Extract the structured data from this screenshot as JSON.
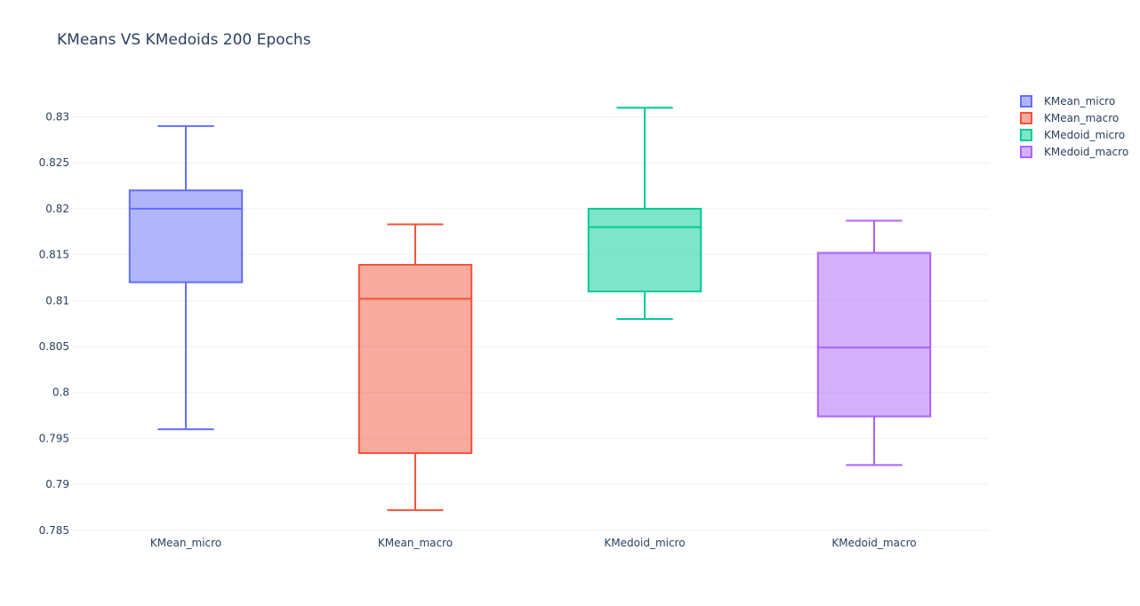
{
  "chart_data": {
    "type": "box",
    "title": "KMeans VS KMedoids 200 Epochs",
    "xlabel": "",
    "ylabel": "",
    "categories": [
      "KMean_micro",
      "KMean_macro",
      "KMedoid_micro",
      "KMedoid_macro"
    ],
    "ylim": [
      0.7845,
      0.8345
    ],
    "yticks": [
      0.785,
      0.79,
      0.795,
      0.8,
      0.805,
      0.81,
      0.815,
      0.82,
      0.825,
      0.83
    ],
    "ytick_labels": [
      "0.785",
      "0.79",
      "0.795",
      "0.8",
      "0.805",
      "0.81",
      "0.815",
      "0.82",
      "0.825",
      "0.83"
    ],
    "grid": true,
    "legend_position": "top-right",
    "series": [
      {
        "name": "KMean_micro",
        "min": 0.796,
        "q1": 0.812,
        "median": 0.82,
        "q3": 0.822,
        "max": 0.829,
        "color": "#636efa"
      },
      {
        "name": "KMean_macro",
        "min": 0.7872,
        "q1": 0.7934,
        "median": 0.8102,
        "q3": 0.8139,
        "max": 0.8183,
        "color": "#ef553b"
      },
      {
        "name": "KMedoid_micro",
        "min": 0.808,
        "q1": 0.811,
        "median": 0.818,
        "q3": 0.82,
        "max": 0.831,
        "color": "#00cc96"
      },
      {
        "name": "KMedoid_macro",
        "min": 0.7921,
        "q1": 0.7974,
        "median": 0.8049,
        "q3": 0.8152,
        "max": 0.8187,
        "color": "#ab63fa"
      }
    ]
  }
}
